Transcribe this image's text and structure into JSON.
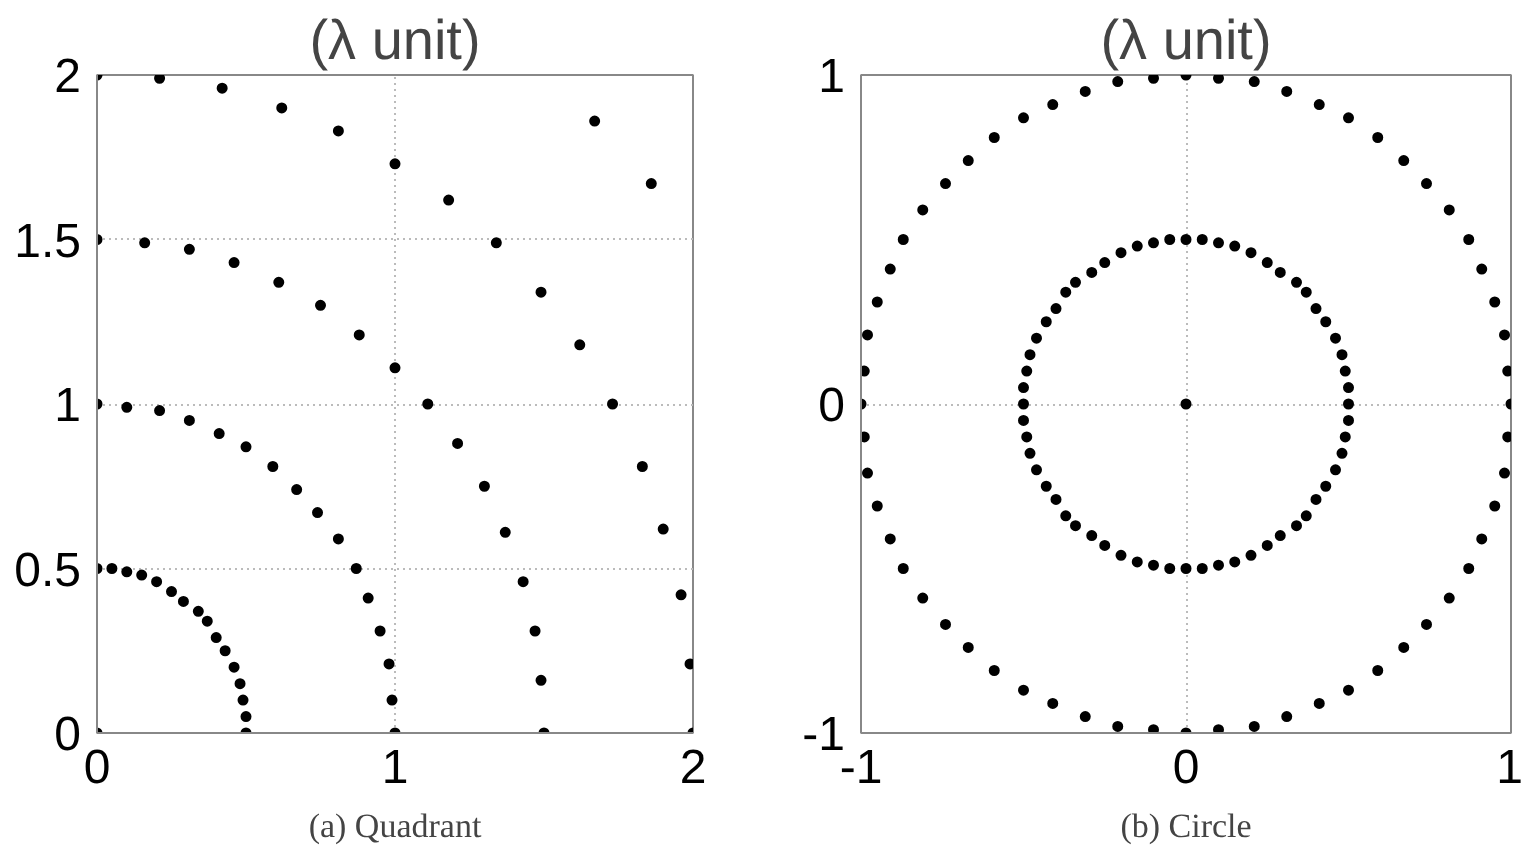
{
  "chart_data": [
    {
      "type": "scatter",
      "title": "(λ unit)",
      "annotations": [
        "(a) Quadrant"
      ],
      "xlim": [
        0,
        2
      ],
      "ylim": [
        0,
        2
      ],
      "xticks": [
        0,
        1,
        2
      ],
      "yticks": [
        0,
        0.5,
        1,
        1.5,
        2
      ],
      "grid": true,
      "marker": "circle",
      "series": [
        {
          "color": "#000000",
          "x": [
            0,
            0.5,
            0.5,
            0.49,
            0.48,
            0.46,
            0.43,
            0.4,
            0.37,
            0.34,
            0.29,
            0.25,
            0.2,
            0.15,
            0.1,
            0.05,
            0,
            1,
            0.99,
            0.98,
            0.95,
            0.91,
            0.87,
            0.81,
            0.74,
            0.67,
            0.59,
            0.5,
            0.41,
            0.31,
            0.21,
            0.1,
            0,
            1.5,
            1.49,
            1.47,
            1.43,
            1.37,
            1.3,
            1.21,
            1.11,
            1.0,
            0.88,
            0.75,
            0.61,
            0.46,
            0.31,
            0.16,
            0,
            2,
            1.99,
            1.96,
            1.9,
            1.83,
            1.73,
            1.62,
            1.49,
            1.34,
            1.18,
            1,
            0.81,
            0.62,
            0.42,
            0.21,
            0,
            1.86,
            1.67
          ],
          "values": [
            0,
            0,
            0.05,
            0.1,
            0.15,
            0.2,
            0.25,
            0.29,
            0.34,
            0.37,
            0.4,
            0.43,
            0.46,
            0.48,
            0.49,
            0.5,
            0.5,
            0,
            0.1,
            0.21,
            0.31,
            0.41,
            0.5,
            0.59,
            0.67,
            0.74,
            0.81,
            0.87,
            0.91,
            0.95,
            0.98,
            0.99,
            1,
            0,
            0.16,
            0.31,
            0.46,
            0.61,
            0.75,
            0.88,
            1.0,
            1.11,
            1.21,
            1.3,
            1.37,
            1.43,
            1.47,
            1.49,
            1.5,
            0,
            0.21,
            0.42,
            0.62,
            0.81,
            1,
            1.18,
            1.34,
            1.49,
            1.62,
            1.73,
            1.83,
            1.9,
            1.96,
            1.99,
            2,
            1.67,
            1.86
          ]
        }
      ]
    },
    {
      "type": "scatter",
      "title": "(λ unit)",
      "annotations": [
        "(b) Circle"
      ],
      "xlim": [
        -1,
        1
      ],
      "ylim": [
        -1,
        1
      ],
      "xticks": [
        -1,
        0,
        1
      ],
      "yticks": [
        -1,
        0,
        1
      ],
      "grid": true,
      "marker": "circle",
      "series": [
        {
          "color": "#000000",
          "x": [
            0,
            1,
            0.99,
            0.98,
            0.95,
            0.91,
            0.87,
            0.81,
            0.74,
            0.67,
            0.59,
            0.5,
            0.41,
            0.31,
            0.21,
            0.1,
            0,
            -0.1,
            -0.21,
            -0.31,
            -0.41,
            -0.5,
            -0.59,
            -0.67,
            -0.74,
            -0.81,
            -0.87,
            -0.91,
            -0.95,
            -0.98,
            -0.99,
            -1,
            -0.99,
            -0.98,
            -0.95,
            -0.91,
            -0.87,
            -0.81,
            -0.74,
            -0.67,
            -0.59,
            -0.5,
            -0.41,
            -0.31,
            -0.21,
            -0.1,
            0,
            0.1,
            0.21,
            0.31,
            0.41,
            0.5,
            0.59,
            0.67,
            0.74,
            0.81,
            0.87,
            0.91,
            0.95,
            0.98,
            0.99,
            0.5,
            0.5,
            0.49,
            0.48,
            0.46,
            0.43,
            0.4,
            0.37,
            0.34,
            0.29,
            0.25,
            0.2,
            0.15,
            0.1,
            0.05,
            0,
            -0.05,
            -0.1,
            -0.15,
            -0.2,
            -0.25,
            -0.29,
            -0.34,
            -0.37,
            -0.4,
            -0.43,
            -0.46,
            -0.48,
            -0.49,
            -0.5,
            -0.5,
            -0.5,
            -0.49,
            -0.48,
            -0.46,
            -0.43,
            -0.4,
            -0.37,
            -0.34,
            -0.29,
            -0.25,
            -0.2,
            -0.15,
            -0.1,
            -0.05,
            0,
            0.05,
            0.1,
            0.15,
            0.2,
            0.25,
            0.29,
            0.34,
            0.37,
            0.4,
            0.43,
            0.46,
            0.48,
            0.49,
            0.5
          ],
          "values": [
            0,
            0,
            0.1,
            0.21,
            0.31,
            0.41,
            0.5,
            0.59,
            0.67,
            0.74,
            0.81,
            0.87,
            0.91,
            0.95,
            0.98,
            0.99,
            1,
            0.99,
            0.98,
            0.95,
            0.91,
            0.87,
            0.81,
            0.74,
            0.67,
            0.59,
            0.5,
            0.41,
            0.31,
            0.21,
            0.1,
            0,
            -0.1,
            -0.21,
            -0.31,
            -0.41,
            -0.5,
            -0.59,
            -0.67,
            -0.74,
            -0.81,
            -0.87,
            -0.91,
            -0.95,
            -0.98,
            -0.99,
            -1,
            -0.99,
            -0.98,
            -0.95,
            -0.91,
            -0.87,
            -0.81,
            -0.74,
            -0.67,
            -0.59,
            -0.5,
            -0.41,
            -0.31,
            -0.21,
            -0.1,
            0,
            0.05,
            0.1,
            0.15,
            0.2,
            0.25,
            0.29,
            0.34,
            0.37,
            0.4,
            0.43,
            0.46,
            0.48,
            0.49,
            0.5,
            0.5,
            0.5,
            0.49,
            0.48,
            0.46,
            0.43,
            0.4,
            0.37,
            0.34,
            0.29,
            0.25,
            0.2,
            0.15,
            0.1,
            0.05,
            0,
            -0.05,
            -0.1,
            -0.15,
            -0.2,
            -0.25,
            -0.29,
            -0.34,
            -0.37,
            -0.4,
            -0.43,
            -0.46,
            -0.48,
            -0.49,
            -0.5,
            -0.5,
            -0.5,
            -0.49,
            -0.48,
            -0.46,
            -0.43,
            -0.4,
            -0.37,
            -0.34,
            -0.29,
            -0.25,
            -0.2,
            -0.15,
            -0.1,
            -0.05
          ]
        }
      ]
    }
  ]
}
